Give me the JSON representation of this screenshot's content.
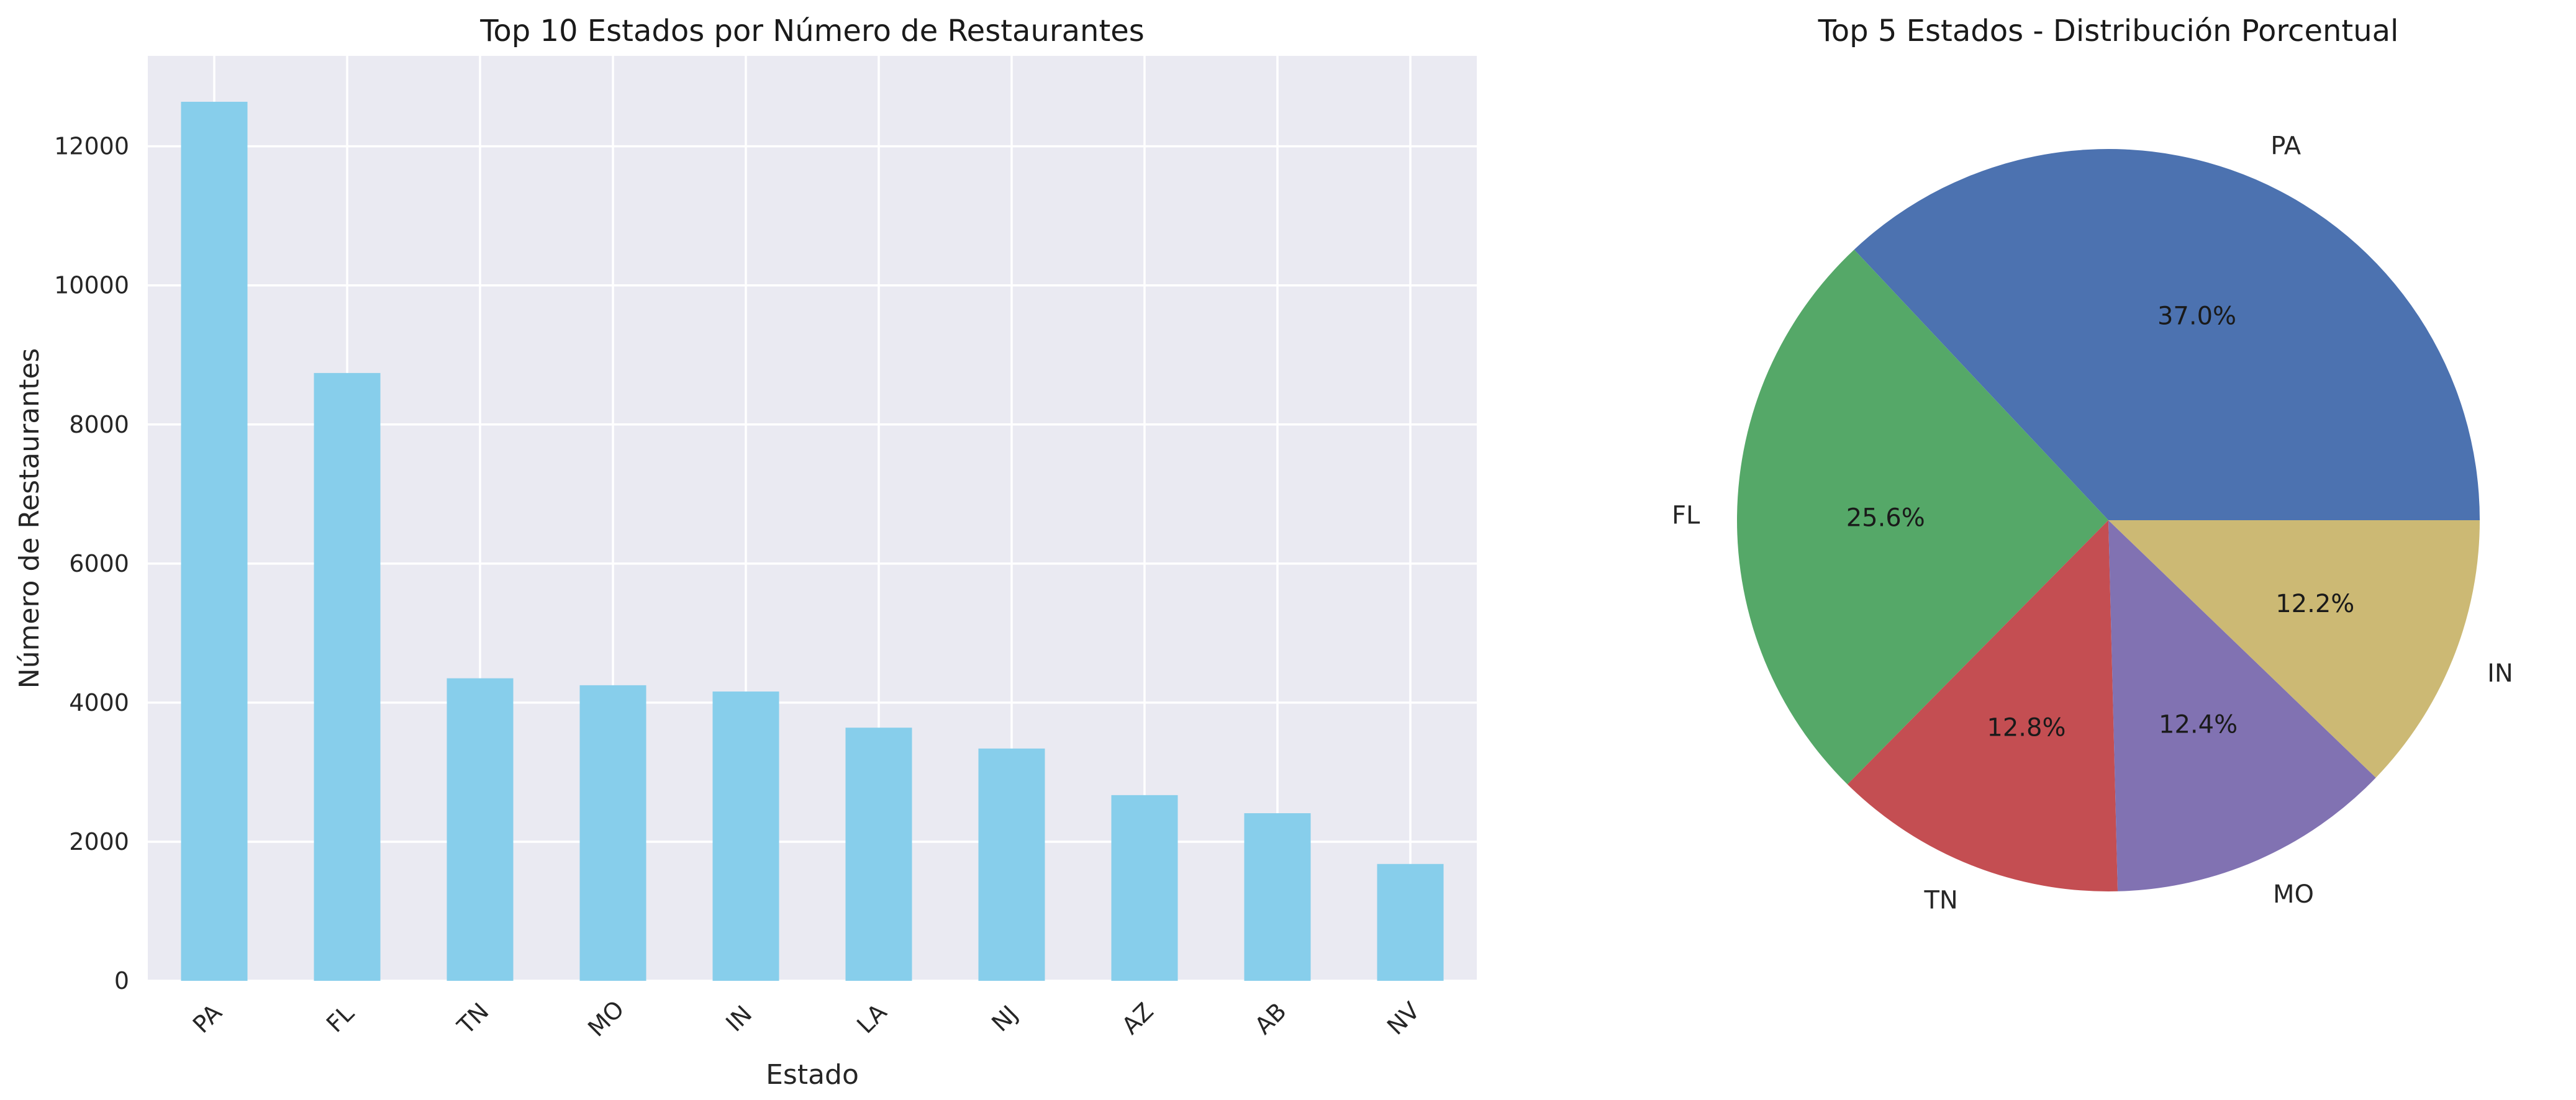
{
  "chart_data": [
    {
      "type": "bar",
      "title": "Top 10 Estados por Número de Restaurantes",
      "xlabel": "Estado",
      "ylabel": "Número de Restaurantes",
      "categories": [
        "PA",
        "FL",
        "TN",
        "MO",
        "IN",
        "LA",
        "NJ",
        "AZ",
        "AB",
        "NV"
      ],
      "values": [
        12640,
        8740,
        4350,
        4250,
        4160,
        3640,
        3340,
        2670,
        2410,
        1680
      ],
      "ylim": [
        0,
        13300
      ],
      "yticks": [
        0,
        2000,
        4000,
        6000,
        8000,
        10000,
        12000
      ],
      "color": "#87ceeb",
      "background": "#eaeaf2",
      "grid": true
    },
    {
      "type": "pie",
      "title": "Top 5 Estados - Distribución Porcentual",
      "labels": [
        "PA",
        "FL",
        "TN",
        "MO",
        "IN"
      ],
      "values": [
        37.0,
        25.6,
        12.8,
        12.4,
        12.2
      ],
      "value_labels": [
        "37.0%",
        "25.6%",
        "12.8%",
        "12.4%",
        "12.2%"
      ],
      "colors": [
        "#4c72b0",
        "#55a868",
        "#c44e52",
        "#8172b2",
        "#ccb974"
      ]
    }
  ]
}
